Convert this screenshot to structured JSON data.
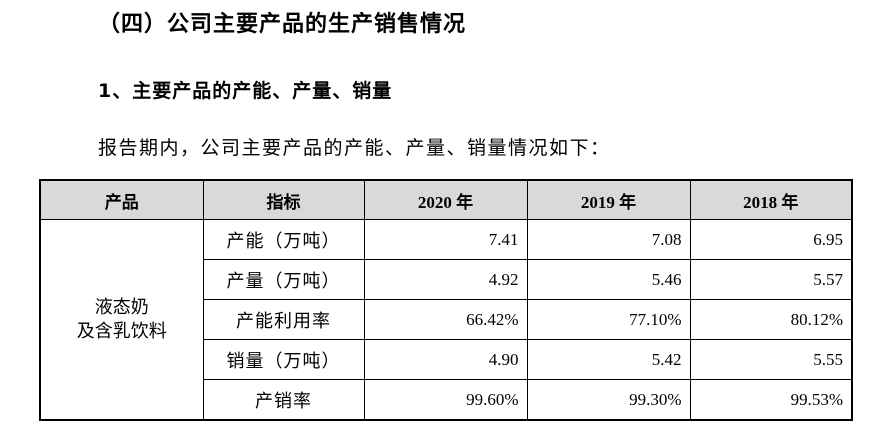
{
  "section_heading": "（四）公司主要产品的生产销售情况",
  "subheading": "1、主要产品的产能、产量、销量",
  "intro": "报告期内，公司主要产品的产能、产量、销量情况如下：",
  "table": {
    "headers": [
      "产品",
      "指标",
      "2020 年",
      "2019 年",
      "2018 年"
    ],
    "product_line1": "液态奶",
    "product_line2": "及含乳饮料",
    "rows": [
      {
        "metric": "产能（万吨）",
        "v2020": "7.41",
        "v2019": "7.08",
        "v2018": "6.95"
      },
      {
        "metric": "产量（万吨）",
        "v2020": "4.92",
        "v2019": "5.46",
        "v2018": "5.57"
      },
      {
        "metric": "产能利用率",
        "v2020": "66.42%",
        "v2019": "77.10%",
        "v2018": "80.12%"
      },
      {
        "metric": "销量（万吨）",
        "v2020": "4.90",
        "v2019": "5.42",
        "v2018": "5.55"
      },
      {
        "metric": "产销率",
        "v2020": "99.60%",
        "v2019": "99.30%",
        "v2018": "99.53%"
      }
    ]
  }
}
